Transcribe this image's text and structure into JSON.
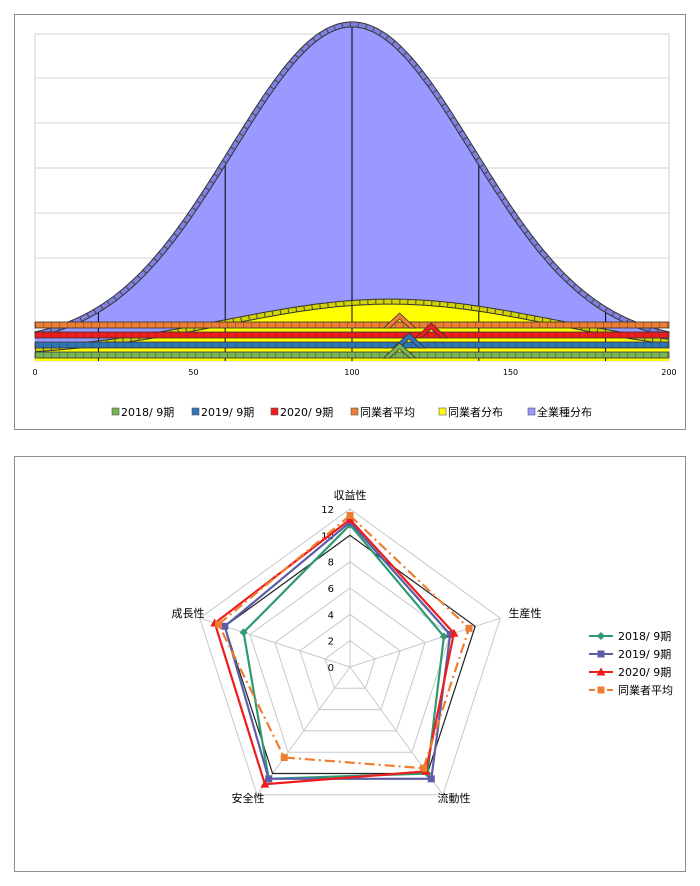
{
  "chart_data": [
    {
      "type": "area",
      "x_ticks": [
        "0",
        "50",
        "100",
        "150",
        "200"
      ],
      "xlim": [
        0,
        200
      ],
      "colors": {
        "all_industries": "#9999ff",
        "peers": "#ffff00",
        "y2018": "#77b255",
        "y2019": "#2f74b5",
        "y2020": "#ee1c1c",
        "peer_avg": "#ed7d31"
      },
      "distribution_curves": [
        {
          "name": "全業種分布",
          "mean": 100,
          "peak": 0.97,
          "base": 0.05,
          "spread": 38
        },
        {
          "name": "同業者分布",
          "mean": 112,
          "peak": 0.16,
          "base": 0.02,
          "spread": 52
        }
      ],
      "series": [
        {
          "name": "2018/ 9期",
          "marker_x": 115
        },
        {
          "name": "2019/ 9期",
          "marker_x": 118
        },
        {
          "name": "2020/ 9期",
          "marker_x": 125
        },
        {
          "name": "同業者平均",
          "marker_x": 115
        }
      ],
      "legend": [
        "2018/ 9期",
        "2019/ 9期",
        "2020/ 9期",
        "同業者平均",
        "同業者分布",
        "全業種分布"
      ],
      "legend_position": "bottom"
    },
    {
      "type": "radar",
      "axes": [
        "収益性",
        "生産性",
        "流動性",
        "安全性",
        "成長性"
      ],
      "r_ticks": [
        "0",
        "2",
        "4",
        "6",
        "8",
        "10",
        "12"
      ],
      "rlim": [
        0,
        12
      ],
      "outer_ref_values": [
        10,
        10,
        10,
        10,
        10
      ],
      "series": [
        {
          "name": "2018/ 9期",
          "values": [
            10.8,
            7.5,
            10.0,
            10.5,
            8.5
          ],
          "color": "#2e9a70",
          "marker": "diamond"
        },
        {
          "name": "2019/ 9期",
          "values": [
            11.0,
            8.0,
            10.5,
            10.5,
            10.0
          ],
          "color": "#5b5ea6",
          "marker": "square"
        },
        {
          "name": "2020/ 9期",
          "values": [
            11.2,
            8.3,
            9.8,
            11.0,
            10.8
          ],
          "color": "#ee1c1c",
          "marker": "triangle"
        },
        {
          "name": "同業者平均",
          "values": [
            11.5,
            9.5,
            9.5,
            8.5,
            10.5
          ],
          "color": "#ed7d31",
          "marker": "square",
          "dashed": true
        }
      ],
      "legend_position": "right"
    }
  ]
}
